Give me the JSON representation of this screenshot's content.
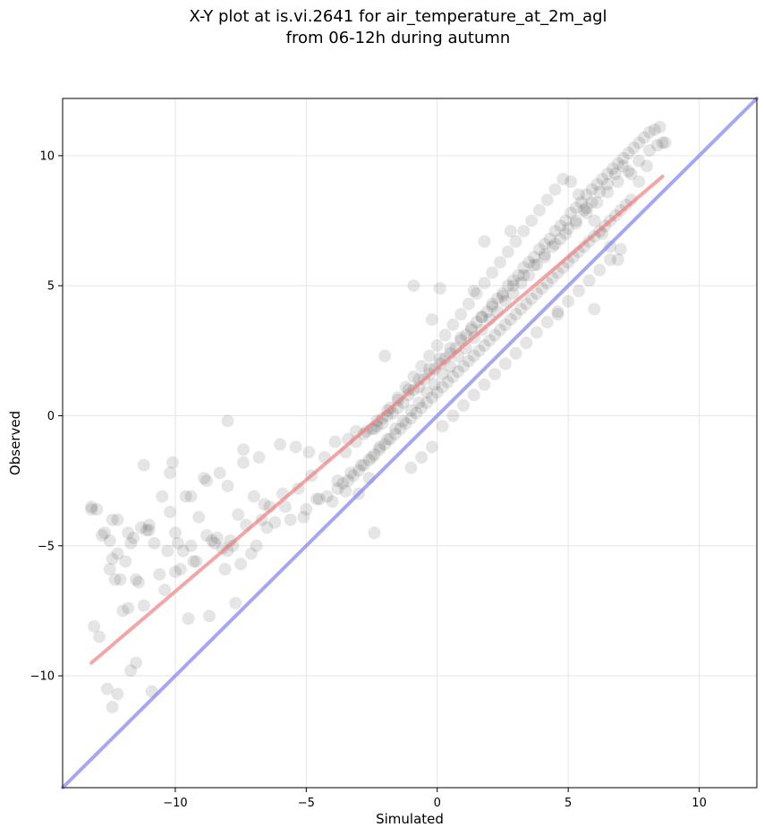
{
  "chart_data": {
    "type": "scatter",
    "title": "X-Y plot at is.vi.2641 for air_temperature_at_2m_agl",
    "subtitle": "from 06-12h during autumn",
    "xlabel": "Simulated",
    "ylabel": "Observed",
    "xlim": [
      -14.3,
      12.2
    ],
    "ylim": [
      -14.3,
      12.2
    ],
    "xticks": [
      -10,
      -5,
      0,
      5,
      10
    ],
    "yticks": [
      -10,
      -5,
      0,
      5,
      10
    ],
    "xtick_labels": [
      "−10",
      "−5",
      "0",
      "5",
      "10"
    ],
    "ytick_labels": [
      "−10",
      "−5",
      "0",
      "5",
      "10"
    ],
    "grid": true,
    "point_color": "#000000",
    "point_alpha": 0.1,
    "fit_line": {
      "x": [
        -13.2,
        8.6
      ],
      "y": [
        -9.5,
        9.2
      ],
      "color": "#f08080"
    },
    "identity_line": {
      "x": [
        -14.3,
        12.2
      ],
      "y": [
        -14.3,
        12.2
      ],
      "color": "#8080f0"
    },
    "points": {
      "x": [
        -13.2,
        -13.0,
        -12.7,
        -12.4,
        -12.2,
        -12.3,
        -12.5,
        -12.1,
        -11.8,
        -11.6,
        -11.3,
        -11.0,
        -10.8,
        -10.5,
        -10.2,
        -10.0,
        -9.7,
        -9.4,
        -9.1,
        -8.8,
        -8.5,
        -8.2,
        -7.9,
        -7.6,
        -7.3,
        -7.0,
        -6.7,
        -6.4,
        -13.1,
        -12.9,
        -12.6,
        -12.2,
        -11.7,
        -11.2,
        -10.9,
        -10.3,
        -9.8,
        -9.3,
        -8.6,
        -8.0,
        -7.5,
        -6.9,
        -6.2,
        -5.6,
        -5.0,
        -4.5,
        -12.4,
        -11.9,
        -11.4,
        -10.6,
        -10.0,
        -9.5,
        -8.7,
        -8.1,
        -7.7,
        -6.6,
        -5.9,
        -5.3,
        -4.8,
        -4.2,
        -3.8,
        -3.3,
        -2.9,
        -12.0,
        -11.5,
        -11.1,
        -10.4,
        -9.9,
        -9.2,
        -8.4,
        -7.8,
        -7.1,
        -6.5,
        -5.8,
        -5.1,
        -4.6,
        -4.0,
        -3.5,
        -3.0,
        -2.6,
        -12.5,
        -11.8,
        -11.2,
        -10.1,
        -9.6,
        -8.9,
        -8.3,
        -7.4,
        -13.2,
        -12.8,
        -12.4,
        -12.2,
        -11.7,
        -11.5,
        -11.0,
        -10.2,
        -9.4,
        -8.8,
        -8.0,
        -7.4,
        -6.8,
        -6.0,
        -5.4,
        -4.9,
        -4.3,
        -3.9,
        -3.4,
        -3.1,
        -2.8,
        -2.5,
        -2.3,
        -2.1,
        -1.9,
        -1.7,
        -1.5,
        -1.3,
        -1.1,
        -0.9,
        -0.7,
        -0.5,
        -0.3,
        -0.1,
        0.1,
        0.3,
        0.5,
        0.7,
        0.9,
        1.1,
        1.3,
        1.5,
        1.7,
        1.9,
        2.1,
        2.3,
        2.5,
        2.7,
        2.9,
        3.1,
        3.3,
        3.5,
        3.7,
        3.9,
        4.1,
        4.3,
        4.5,
        4.7,
        4.9,
        5.1,
        5.3,
        5.5,
        5.7,
        5.9,
        6.1,
        6.3,
        6.5,
        6.7,
        6.9,
        7.1,
        7.3,
        7.5,
        7.7,
        7.9,
        8.1,
        8.3,
        8.5,
        8.7,
        -3.8,
        -3.6,
        -3.4,
        -3.2,
        -3.0,
        -2.8,
        -2.6,
        -2.4,
        -2.2,
        -2.0,
        -1.8,
        -1.6,
        -1.4,
        -1.2,
        -1.0,
        -0.8,
        -0.6,
        -0.4,
        -0.2,
        0.0,
        0.2,
        0.4,
        0.6,
        0.8,
        1.0,
        1.2,
        1.4,
        1.6,
        1.8,
        2.0,
        2.2,
        2.4,
        2.6,
        2.8,
        3.0,
        3.2,
        3.4,
        3.6,
        3.8,
        4.0,
        4.2,
        4.4,
        4.6,
        4.8,
        5.0,
        5.2,
        5.4,
        5.6,
        5.8,
        6.0,
        6.2,
        6.4,
        6.6,
        6.8,
        7.0,
        7.2,
        7.4,
        -3.5,
        -3.1,
        -2.7,
        -2.3,
        -1.9,
        -1.5,
        -1.1,
        -0.7,
        -0.3,
        0.1,
        0.5,
        0.9,
        1.3,
        1.7,
        2.1,
        2.5,
        2.9,
        3.3,
        3.7,
        4.1,
        4.5,
        4.9,
        5.3,
        5.7,
        6.1,
        6.5,
        6.9,
        7.3,
        7.7,
        8.1,
        8.4,
        8.6,
        -2.5,
        -2.2,
        -1.9,
        -1.6,
        -1.3,
        -1.0,
        -0.7,
        -0.4,
        -0.1,
        0.2,
        0.5,
        0.8,
        1.1,
        1.4,
        1.7,
        2.0,
        2.3,
        2.6,
        2.9,
        3.2,
        3.5,
        3.8,
        4.1,
        4.4,
        4.7,
        5.0,
        5.3,
        5.6,
        5.9,
        6.2,
        6.5,
        6.8,
        7.1,
        7.4,
        7.7,
        8.0,
        -2.4,
        -2.1,
        -1.8,
        -1.5,
        -1.2,
        -0.9,
        -0.6,
        -0.3,
        0.0,
        0.3,
        0.6,
        0.9,
        1.2,
        1.5,
        1.8,
        2.1,
        2.4,
        2.7,
        3.0,
        3.3,
        3.6,
        3.9,
        4.2,
        4.5,
        4.8,
        5.1,
        5.4,
        5.7,
        6.0,
        6.3,
        6.6,
        6.9,
        -1.0,
        -0.6,
        -0.2,
        0.2,
        0.6,
        1.0,
        1.4,
        1.8,
        2.2,
        2.6,
        3.0,
        3.4,
        3.8,
        4.2,
        4.6,
        5.0,
        5.4,
        5.8,
        6.2,
        6.6,
        7.0,
        -8.0,
        -2.4,
        -0.9,
        0.1,
        1.8,
        2.8,
        1.4,
        -0.2,
        4.6,
        6.0,
        -2.0
      ],
      "y": [
        -3.5,
        -3.6,
        -4.5,
        -5.5,
        -4.0,
        -6.3,
        -5.9,
        -6.3,
        -7.4,
        -4.7,
        -4.3,
        -4.2,
        -4.9,
        -3.1,
        -3.7,
        -4.5,
        -5.2,
        -5.0,
        -3.9,
        -4.6,
        -4.9,
        -5.1,
        -4.8,
        -3.8,
        -4.2,
        -3.1,
        -4.0,
        -3.5,
        -8.1,
        -8.5,
        -10.5,
        -10.7,
        -9.8,
        -7.3,
        -10.6,
        -5.2,
        -5.9,
        -5.6,
        -4.8,
        -5.2,
        -5.7,
        -5.0,
        -4.1,
        -4.0,
        -3.6,
        -3.2,
        -11.2,
        -5.6,
        -6.4,
        -6.1,
        -6.0,
        -7.8,
        -7.7,
        -5.9,
        -7.2,
        -3.4,
        -3.0,
        -2.8,
        -2.3,
        -3.1,
        -2.5,
        -2.2,
        -1.9,
        -7.5,
        -6.3,
        -4.4,
        -6.7,
        -4.9,
        -5.6,
        -4.7,
        -5.0,
        -5.3,
        -4.3,
        -3.5,
        -3.9,
        -3.2,
        -3.3,
        -2.9,
        -3.0,
        -2.4,
        -4.8,
        -4.5,
        -1.9,
        -1.8,
        -3.1,
        -2.4,
        -2.2,
        -1.3,
        -3.6,
        -4.6,
        -4.0,
        -5.3,
        -4.9,
        -9.5,
        -4.4,
        -2.2,
        -3.1,
        -2.5,
        -2.7,
        -1.8,
        -1.6,
        -1.1,
        -1.2,
        -1.4,
        -1.6,
        -1.0,
        -0.9,
        -0.6,
        -0.7,
        -0.5,
        -0.4,
        -0.3,
        0.0,
        0.1,
        0.3,
        0.5,
        0.8,
        1.0,
        1.1,
        1.4,
        1.6,
        1.8,
        2.0,
        2.2,
        2.4,
        2.6,
        2.9,
        3.1,
        3.3,
        3.6,
        3.8,
        4.0,
        4.3,
        4.5,
        4.7,
        5.0,
        5.2,
        5.4,
        5.7,
        5.9,
        6.1,
        6.4,
        6.6,
        6.8,
        7.1,
        7.3,
        7.5,
        7.8,
        8.0,
        8.2,
        8.5,
        8.7,
        8.9,
        9.1,
        9.3,
        9.5,
        9.7,
        9.9,
        10.1,
        10.3,
        10.5,
        10.7,
        10.9,
        11.0,
        11.1,
        10.5,
        -2.8,
        -2.6,
        -2.5,
        -2.3,
        -2.1,
        -1.9,
        -1.7,
        -1.5,
        -1.3,
        -1.1,
        -0.9,
        -0.7,
        -0.5,
        -0.3,
        -0.1,
        0.1,
        0.3,
        0.5,
        0.7,
        0.9,
        1.1,
        1.3,
        1.5,
        1.7,
        1.9,
        2.1,
        2.3,
        2.5,
        2.7,
        2.9,
        3.1,
        3.3,
        3.5,
        3.7,
        3.9,
        4.1,
        4.3,
        4.5,
        4.7,
        4.9,
        5.1,
        5.3,
        5.5,
        5.7,
        5.9,
        6.1,
        6.3,
        6.5,
        6.7,
        6.9,
        7.1,
        7.3,
        7.5,
        7.7,
        7.9,
        8.1,
        8.3,
        -1.4,
        -1.0,
        -0.6,
        -0.2,
        0.2,
        0.6,
        1.0,
        1.4,
        1.8,
        2.2,
        2.6,
        3.0,
        3.4,
        3.8,
        4.2,
        4.6,
        5.0,
        5.4,
        5.8,
        6.2,
        6.6,
        7.0,
        7.4,
        7.8,
        8.2,
        8.6,
        9.0,
        9.4,
        9.8,
        10.2,
        10.4,
        10.5,
        -1.6,
        -1.2,
        -0.9,
        -0.5,
        -0.2,
        0.2,
        0.5,
        0.9,
        1.2,
        1.6,
        1.9,
        2.3,
        2.6,
        3.0,
        3.3,
        3.7,
        4.0,
        4.4,
        4.7,
        5.1,
        5.4,
        5.8,
        6.1,
        6.5,
        6.8,
        7.2,
        7.5,
        7.9,
        8.2,
        8.6,
        8.9,
        9.3,
        9.6,
        9.3,
        9.0,
        9.6,
        -0.5,
        -0.1,
        0.3,
        0.7,
        1.1,
        1.5,
        1.9,
        2.3,
        2.7,
        3.1,
        3.5,
        3.9,
        4.3,
        4.7,
        5.1,
        5.5,
        5.9,
        6.3,
        6.7,
        7.1,
        7.5,
        7.9,
        8.3,
        8.7,
        9.1,
        9.0,
        8.5,
        8.0,
        7.5,
        7.0,
        6.5,
        6.0,
        -2.0,
        -1.6,
        -1.2,
        -0.4,
        0.0,
        0.4,
        0.8,
        1.2,
        1.6,
        2.0,
        2.4,
        2.8,
        3.2,
        3.6,
        4.0,
        4.4,
        4.8,
        5.2,
        5.6,
        6.0,
        6.4,
        -0.2,
        -4.5,
        5.0,
        4.9,
        6.7,
        7.1,
        4.8,
        3.7,
        3.9,
        4.1,
        2.3
      ]
    }
  }
}
